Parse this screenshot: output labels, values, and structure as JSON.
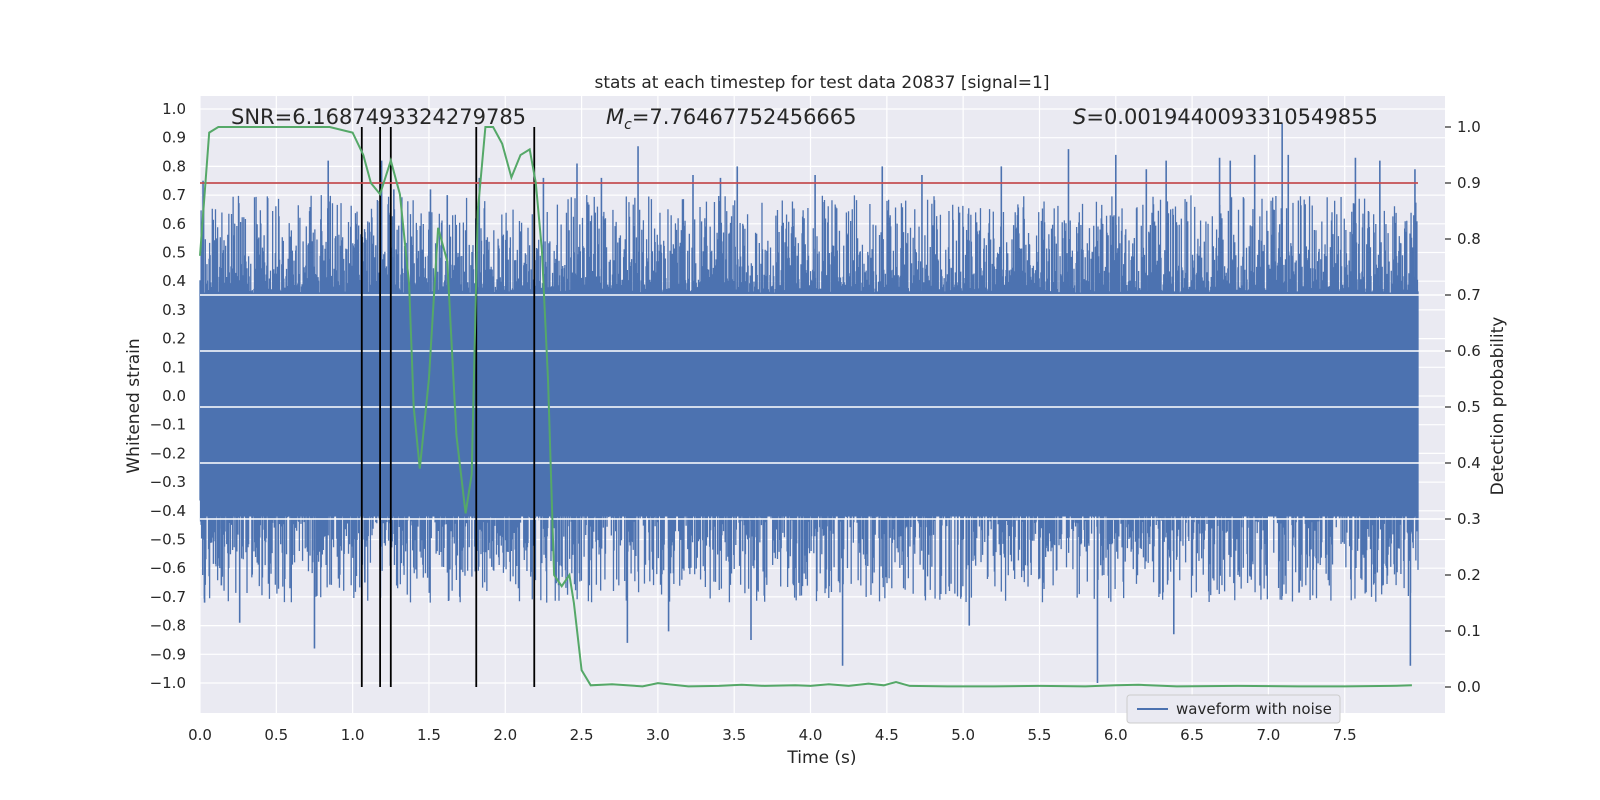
{
  "chart_data": {
    "type": "line",
    "title": "stats at each timestep for test data 20837 [signal=1]",
    "xlabel": "Time (s)",
    "ylabel_left": "Whitened strain",
    "ylabel_right": "Detection probability",
    "xlim": [
      0.0,
      7.98
    ],
    "ylim_left": [
      -1.09,
      1.05
    ],
    "ylim_right": [
      -0.05,
      1.05
    ],
    "x_ticks": [
      "0.0",
      "0.5",
      "1.0",
      "1.5",
      "2.0",
      "2.5",
      "3.0",
      "3.5",
      "4.0",
      "4.5",
      "5.0",
      "5.5",
      "6.0",
      "6.5",
      "7.0",
      "7.5"
    ],
    "x_tick_values": [
      0.0,
      0.5,
      1.0,
      1.5,
      2.0,
      2.5,
      3.0,
      3.5,
      4.0,
      4.5,
      5.0,
      5.5,
      6.0,
      6.5,
      7.0,
      7.5
    ],
    "left_ticks": [
      "1.0",
      "0.9",
      "0.8",
      "0.7",
      "0.6",
      "0.5",
      "0.4",
      "0.3",
      "0.2",
      "0.1",
      "0.0",
      "−0.1",
      "−0.2",
      "−0.3",
      "−0.4",
      "−0.5",
      "−0.6",
      "−0.7",
      "−0.8",
      "−0.9",
      "−1.0"
    ],
    "left_tick_values": [
      1.0,
      0.9,
      0.8,
      0.7,
      0.6,
      0.5,
      0.4,
      0.3,
      0.2,
      0.1,
      0.0,
      -0.1,
      -0.2,
      -0.3,
      -0.4,
      -0.5,
      -0.6,
      -0.7,
      -0.8,
      -0.9,
      -1.0
    ],
    "right_ticks": [
      "1.0",
      "0.9",
      "0.8",
      "0.7",
      "0.6",
      "0.5",
      "0.4",
      "0.3",
      "0.2",
      "0.1",
      "0.0"
    ],
    "right_tick_values": [
      1.0,
      0.9,
      0.8,
      0.7,
      0.6,
      0.5,
      0.4,
      0.3,
      0.2,
      0.1,
      0.0
    ],
    "grid": true,
    "legend_placement": "lower-right",
    "legend": [
      {
        "label": "waveform with noise",
        "color": "#4c72b0"
      }
    ],
    "annotations": {
      "snr": "SNR=6.1687493324279785",
      "mc_symbol": "M",
      "mc_sub": "c",
      "mc_value": "=7.76467752456665",
      "s_symbol": "S",
      "s_value": "=0.0019440093310549855"
    },
    "threshold": {
      "value": 0.9,
      "axis": "right",
      "color": "#c44e52"
    },
    "vertical_markers": [
      1.06,
      1.18,
      1.25,
      1.81,
      2.19
    ],
    "spikes": [
      {
        "x": 0.02,
        "y": 0.75
      },
      {
        "x": 0.03,
        "y": -0.72
      },
      {
        "x": 0.14,
        "y": -0.66
      },
      {
        "x": 0.26,
        "y": -0.79
      },
      {
        "x": 0.37,
        "y": 0.52
      },
      {
        "x": 0.59,
        "y": -0.67
      },
      {
        "x": 0.75,
        "y": -0.88
      },
      {
        "x": 0.84,
        "y": 0.82
      },
      {
        "x": 1.08,
        "y": -0.65
      },
      {
        "x": 1.19,
        "y": 0.82
      },
      {
        "x": 1.27,
        "y": 0.72
      },
      {
        "x": 1.51,
        "y": 0.72
      },
      {
        "x": 1.62,
        "y": 0.7
      },
      {
        "x": 1.83,
        "y": 0.76
      },
      {
        "x": 2.25,
        "y": 0.76
      },
      {
        "x": 2.47,
        "y": 0.81
      },
      {
        "x": 2.63,
        "y": 0.76
      },
      {
        "x": 2.8,
        "y": -0.86
      },
      {
        "x": 2.87,
        "y": 0.87
      },
      {
        "x": 3.07,
        "y": -0.82
      },
      {
        "x": 3.23,
        "y": 0.77
      },
      {
        "x": 3.41,
        "y": 0.76
      },
      {
        "x": 3.52,
        "y": 0.8
      },
      {
        "x": 3.61,
        "y": -0.85
      },
      {
        "x": 4.03,
        "y": 0.77
      },
      {
        "x": 4.21,
        "y": -0.94
      },
      {
        "x": 4.47,
        "y": 0.8
      },
      {
        "x": 4.73,
        "y": 0.77
      },
      {
        "x": 5.04,
        "y": -0.8
      },
      {
        "x": 5.25,
        "y": 0.8
      },
      {
        "x": 5.69,
        "y": 0.86
      },
      {
        "x": 5.88,
        "y": -1.0
      },
      {
        "x": 6.0,
        "y": 0.84
      },
      {
        "x": 6.2,
        "y": 0.79
      },
      {
        "x": 6.33,
        "y": 0.82
      },
      {
        "x": 6.38,
        "y": -0.83
      },
      {
        "x": 6.68,
        "y": 0.83
      },
      {
        "x": 6.75,
        "y": 0.82
      },
      {
        "x": 6.91,
        "y": 0.84
      },
      {
        "x": 7.09,
        "y": 0.95
      },
      {
        "x": 7.13,
        "y": 0.84
      },
      {
        "x": 7.57,
        "y": 0.83
      },
      {
        "x": 7.73,
        "y": 0.82
      },
      {
        "x": 7.93,
        "y": -0.94
      },
      {
        "x": 7.96,
        "y": 0.79
      }
    ],
    "probability_curve": [
      [
        0.0,
        0.77
      ],
      [
        0.06,
        0.99
      ],
      [
        0.12,
        1.0
      ],
      [
        0.3,
        1.0
      ],
      [
        0.6,
        1.0
      ],
      [
        0.85,
        1.0
      ],
      [
        1.0,
        0.99
      ],
      [
        1.07,
        0.95
      ],
      [
        1.12,
        0.9
      ],
      [
        1.18,
        0.88
      ],
      [
        1.25,
        0.94
      ],
      [
        1.31,
        0.88
      ],
      [
        1.37,
        0.72
      ],
      [
        1.4,
        0.5
      ],
      [
        1.44,
        0.39
      ],
      [
        1.5,
        0.55
      ],
      [
        1.56,
        0.82
      ],
      [
        1.62,
        0.76
      ],
      [
        1.68,
        0.45
      ],
      [
        1.74,
        0.31
      ],
      [
        1.78,
        0.38
      ],
      [
        1.82,
        0.85
      ],
      [
        1.87,
        1.0
      ],
      [
        1.92,
        1.0
      ],
      [
        1.98,
        0.97
      ],
      [
        2.04,
        0.91
      ],
      [
        2.1,
        0.95
      ],
      [
        2.16,
        0.96
      ],
      [
        2.2,
        0.9
      ],
      [
        2.24,
        0.78
      ],
      [
        2.28,
        0.55
      ],
      [
        2.32,
        0.2
      ],
      [
        2.37,
        0.18
      ],
      [
        2.42,
        0.2
      ],
      [
        2.45,
        0.15
      ],
      [
        2.5,
        0.03
      ],
      [
        2.56,
        0.003
      ],
      [
        2.7,
        0.005
      ],
      [
        2.9,
        0.001
      ],
      [
        3.0,
        0.007
      ],
      [
        3.2,
        0.001
      ],
      [
        3.4,
        0.002
      ],
      [
        3.55,
        0.004
      ],
      [
        3.7,
        0.002
      ],
      [
        3.9,
        0.003
      ],
      [
        4.0,
        0.002
      ],
      [
        4.12,
        0.005
      ],
      [
        4.25,
        0.002
      ],
      [
        4.38,
        0.006
      ],
      [
        4.48,
        0.003
      ],
      [
        4.56,
        0.009
      ],
      [
        4.65,
        0.002
      ],
      [
        4.9,
        0.001
      ],
      [
        5.2,
        0.001
      ],
      [
        5.5,
        0.002
      ],
      [
        5.8,
        0.001
      ],
      [
        6.0,
        0.003
      ],
      [
        6.15,
        0.004
      ],
      [
        6.4,
        0.001
      ],
      [
        6.8,
        0.002
      ],
      [
        7.2,
        0.001
      ],
      [
        7.5,
        0.001
      ],
      [
        7.8,
        0.002
      ],
      [
        7.94,
        0.003
      ]
    ]
  },
  "colors": {
    "plot_bg": "#eaeaf2",
    "grid": "#ffffff",
    "waveform": "#4c72b0",
    "probability": "#55a868",
    "threshold": "#c44e52",
    "markers": "#000000"
  }
}
